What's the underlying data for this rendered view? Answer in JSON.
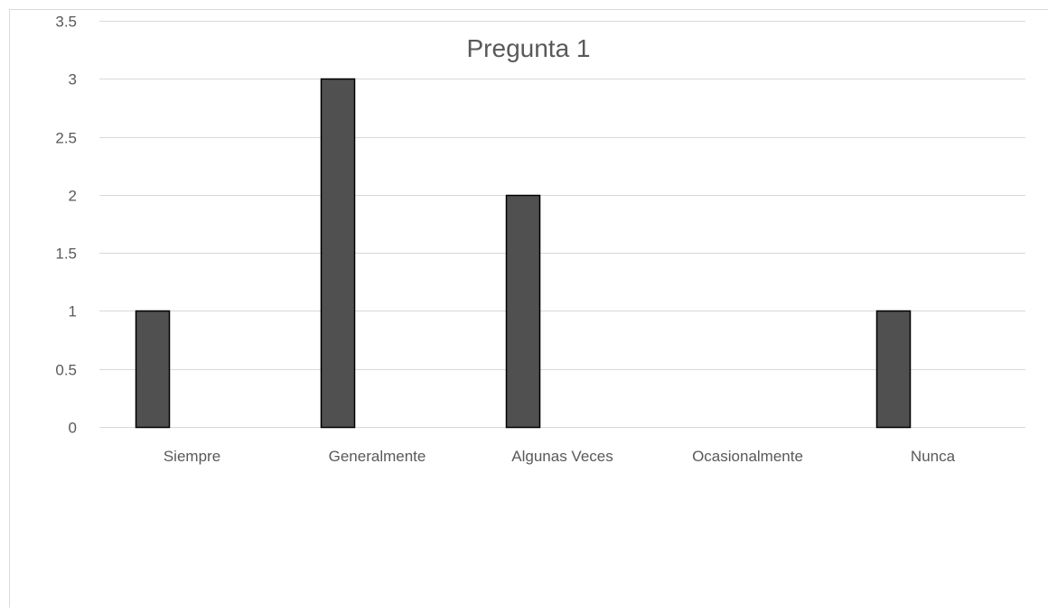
{
  "chart_data": {
    "type": "bar",
    "title": "Pregunta 1",
    "xlabel": "",
    "ylabel": "",
    "categories": [
      "Siempre",
      "Generalmente",
      "Algunas Veces",
      "Ocasionalmente",
      "Nunca"
    ],
    "series": [
      {
        "values": [
          1,
          3,
          2,
          0,
          1
        ]
      }
    ],
    "ylim": [
      0,
      3.5
    ],
    "yticks": [
      "0",
      "0.5",
      "1",
      "1.5",
      "2",
      "2.5",
      "3",
      "3.5"
    ],
    "grid": true,
    "legend": "none",
    "colors": {
      "bar_fill": "#505050",
      "bar_stroke": "#000000",
      "grid": "#d9d9d9",
      "text": "#595959",
      "border": "#d9d9d9"
    }
  }
}
